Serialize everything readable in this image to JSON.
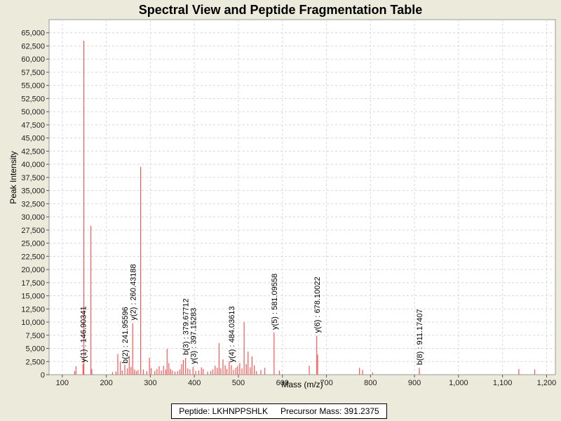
{
  "chart_data": {
    "type": "bar",
    "title": "Spectral View and Peptide Fragmentation Table",
    "xlabel": "Mass (m/z)",
    "ylabel": "Peak Intensity",
    "xlim": [
      70,
      1220
    ],
    "ylim": [
      0,
      67500
    ],
    "grid": true,
    "series_color": "#ff5555",
    "x_ticks": [
      100,
      200,
      300,
      400,
      500,
      600,
      700,
      800,
      900,
      1000,
      1100,
      1200
    ],
    "x_tick_labels": [
      "100",
      "200",
      "300",
      "400",
      "500",
      "600",
      "700",
      "800",
      "900",
      "1,000",
      "1,100",
      "1,200"
    ],
    "y_ticks": [
      0,
      2500,
      5000,
      7500,
      10000,
      12500,
      15000,
      17500,
      20000,
      22500,
      25000,
      27500,
      30000,
      32500,
      35000,
      37500,
      40000,
      42500,
      45000,
      47500,
      50000,
      52500,
      55000,
      57500,
      60000,
      62500,
      65000
    ],
    "y_tick_labels": [
      "0",
      "2,500",
      "5,000",
      "7,500",
      "10,000",
      "12,500",
      "15,000",
      "17,500",
      "20,000",
      "22,500",
      "25,000",
      "27,500",
      "30,000",
      "32,500",
      "35,000",
      "37,500",
      "40,000",
      "42,500",
      "45,000",
      "47,500",
      "50,000",
      "52,500",
      "55,000",
      "57,500",
      "60,000",
      "62,500",
      "65,000"
    ],
    "peaks": [
      {
        "mz": 128,
        "intensity": 700
      },
      {
        "mz": 131,
        "intensity": 1600
      },
      {
        "mz": 147,
        "intensity": 2000
      },
      {
        "mz": 149,
        "intensity": 63500
      },
      {
        "mz": 165,
        "intensity": 28300
      },
      {
        "mz": 167,
        "intensity": 1100
      },
      {
        "mz": 214,
        "intensity": 500
      },
      {
        "mz": 222,
        "intensity": 600
      },
      {
        "mz": 226,
        "intensity": 3900
      },
      {
        "mz": 232,
        "intensity": 2500
      },
      {
        "mz": 236,
        "intensity": 800
      },
      {
        "mz": 242,
        "intensity": 1900
      },
      {
        "mz": 248,
        "intensity": 1200
      },
      {
        "mz": 252,
        "intensity": 3600
      },
      {
        "mz": 256,
        "intensity": 1500
      },
      {
        "mz": 260,
        "intensity": 9800
      },
      {
        "mz": 264,
        "intensity": 1000
      },
      {
        "mz": 268,
        "intensity": 700
      },
      {
        "mz": 272,
        "intensity": 900
      },
      {
        "mz": 278,
        "intensity": 39500
      },
      {
        "mz": 284,
        "intensity": 1000
      },
      {
        "mz": 292,
        "intensity": 700
      },
      {
        "mz": 298,
        "intensity": 3200
      },
      {
        "mz": 302,
        "intensity": 1300
      },
      {
        "mz": 310,
        "intensity": 700
      },
      {
        "mz": 315,
        "intensity": 1100
      },
      {
        "mz": 320,
        "intensity": 1600
      },
      {
        "mz": 325,
        "intensity": 800
      },
      {
        "mz": 330,
        "intensity": 1700
      },
      {
        "mz": 335,
        "intensity": 1000
      },
      {
        "mz": 338,
        "intensity": 4900
      },
      {
        "mz": 342,
        "intensity": 2200
      },
      {
        "mz": 346,
        "intensity": 1100
      },
      {
        "mz": 350,
        "intensity": 800
      },
      {
        "mz": 356,
        "intensity": 600
      },
      {
        "mz": 362,
        "intensity": 700
      },
      {
        "mz": 367,
        "intensity": 1000
      },
      {
        "mz": 371,
        "intensity": 2000
      },
      {
        "mz": 375,
        "intensity": 2800
      },
      {
        "mz": 380,
        "intensity": 3200
      },
      {
        "mz": 385,
        "intensity": 1200
      },
      {
        "mz": 390,
        "intensity": 1000
      },
      {
        "mz": 397,
        "intensity": 1500
      },
      {
        "mz": 403,
        "intensity": 700
      },
      {
        "mz": 410,
        "intensity": 800
      },
      {
        "mz": 416,
        "intensity": 1400
      },
      {
        "mz": 420,
        "intensity": 1100
      },
      {
        "mz": 430,
        "intensity": 600
      },
      {
        "mz": 437,
        "intensity": 700
      },
      {
        "mz": 442,
        "intensity": 1000
      },
      {
        "mz": 447,
        "intensity": 1700
      },
      {
        "mz": 452,
        "intensity": 1300
      },
      {
        "mz": 456,
        "intensity": 6000
      },
      {
        "mz": 460,
        "intensity": 1200
      },
      {
        "mz": 465,
        "intensity": 2900
      },
      {
        "mz": 470,
        "intensity": 1800
      },
      {
        "mz": 474,
        "intensity": 1100
      },
      {
        "mz": 479,
        "intensity": 2600
      },
      {
        "mz": 484,
        "intensity": 1800
      },
      {
        "mz": 489,
        "intensity": 900
      },
      {
        "mz": 494,
        "intensity": 1300
      },
      {
        "mz": 498,
        "intensity": 1600
      },
      {
        "mz": 503,
        "intensity": 2200
      },
      {
        "mz": 508,
        "intensity": 1200
      },
      {
        "mz": 513,
        "intensity": 10000
      },
      {
        "mz": 518,
        "intensity": 2000
      },
      {
        "mz": 522,
        "intensity": 4400
      },
      {
        "mz": 527,
        "intensity": 1400
      },
      {
        "mz": 531,
        "intensity": 3500
      },
      {
        "mz": 536,
        "intensity": 1800
      },
      {
        "mz": 541,
        "intensity": 700
      },
      {
        "mz": 551,
        "intensity": 900
      },
      {
        "mz": 560,
        "intensity": 1300
      },
      {
        "mz": 581,
        "intensity": 8000
      },
      {
        "mz": 593,
        "intensity": 800
      },
      {
        "mz": 661,
        "intensity": 1700
      },
      {
        "mz": 678,
        "intensity": 7400
      },
      {
        "mz": 680,
        "intensity": 3800
      },
      {
        "mz": 775,
        "intensity": 1300
      },
      {
        "mz": 782,
        "intensity": 900
      },
      {
        "mz": 805,
        "intensity": 400
      },
      {
        "mz": 911,
        "intensity": 1300
      },
      {
        "mz": 1137,
        "intensity": 1100
      },
      {
        "mz": 1173,
        "intensity": 1000
      }
    ],
    "ion_labels": [
      {
        "text": "y(1) : 146.90341",
        "mz": 146.9,
        "intensity": 1800
      },
      {
        "text": "b(2) : 241.95596",
        "mz": 241.96,
        "intensity": 1600
      },
      {
        "text": "y(2) : 260.43188",
        "mz": 260.43,
        "intensity": 9800
      },
      {
        "text": "b(3) : 379.67712",
        "mz": 379.68,
        "intensity": 3200
      },
      {
        "text": "y(3) : 397.15283",
        "mz": 397.15,
        "intensity": 1500
      },
      {
        "text": "y(4) : 484.03613",
        "mz": 484.04,
        "intensity": 1800
      },
      {
        "text": "y(5) : 581.09558",
        "mz": 581.1,
        "intensity": 8000
      },
      {
        "text": "y(6) : 678.10022",
        "mz": 678.1,
        "intensity": 7400
      },
      {
        "text": "b(8) : 911.17407",
        "mz": 911.17,
        "intensity": 1300
      }
    ]
  },
  "legend": {
    "peptide": "Peptide: LKHNPPSHLK",
    "precursor": "Precursor Mass: 391.2375"
  }
}
